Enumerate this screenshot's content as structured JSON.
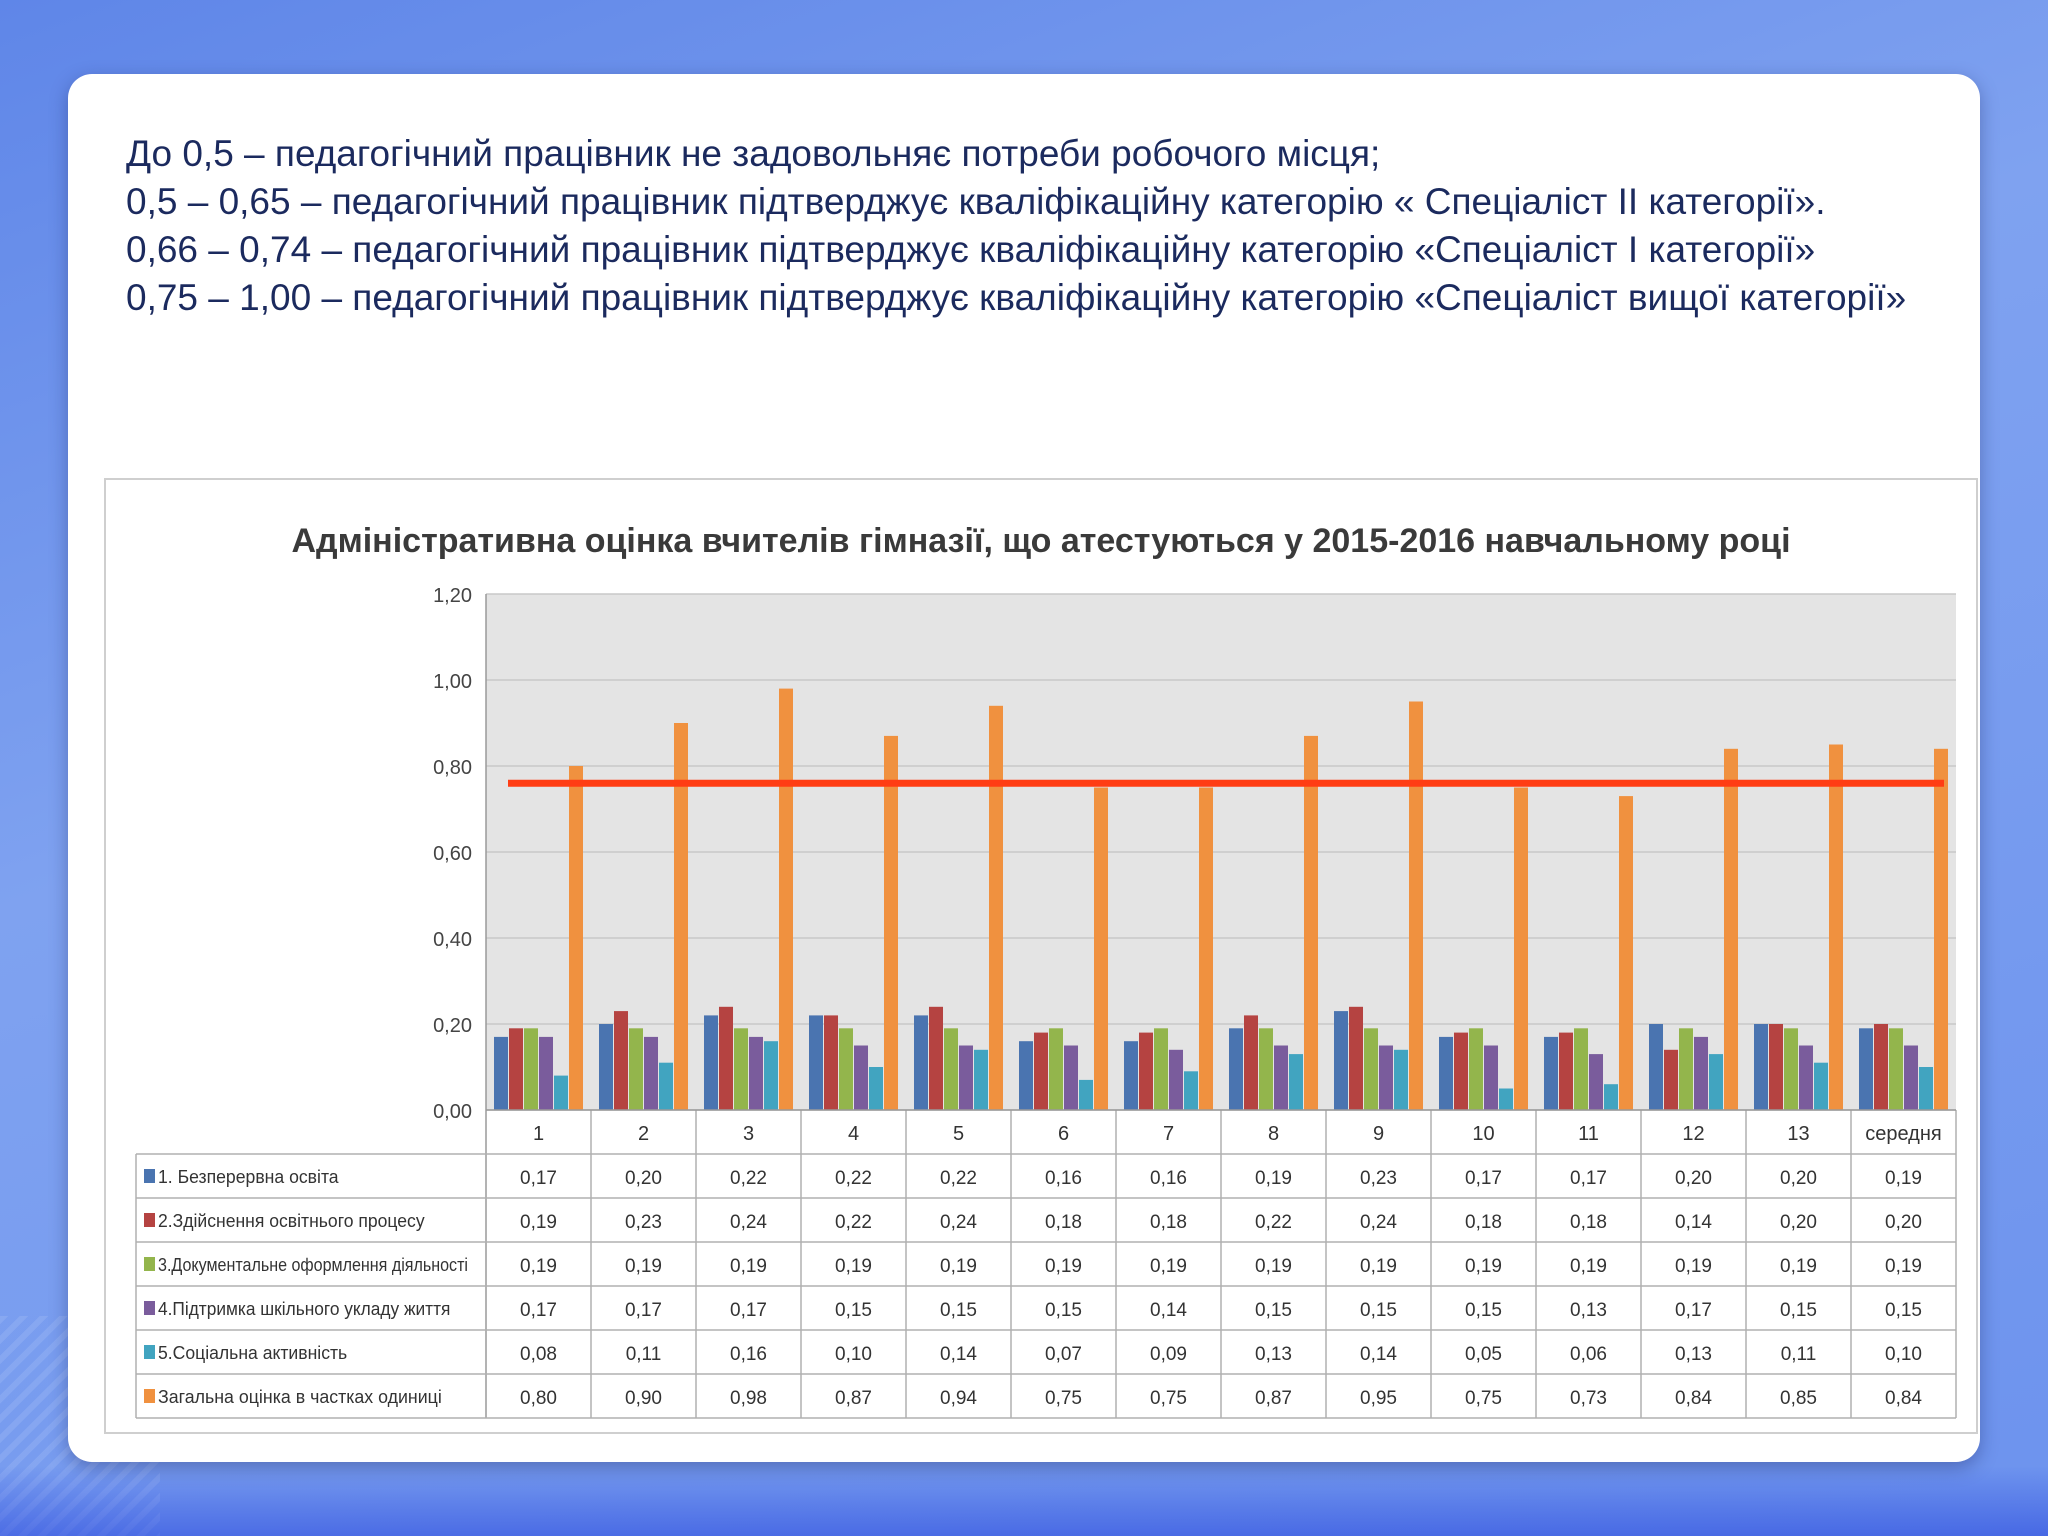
{
  "criteria": [
    "До 0,5 – педагогічний працівник не задовольняє потреби робочого місця;",
    "0,5 – 0,65 – педагогічний працівник підтверджує кваліфікаційну категорію « Спеціаліст ІІ категорії».",
    "0,66 – 0,74 – педагогічний працівник підтверджує кваліфікаційну категорію «Спеціаліст І категорії»",
    "0,75 – 1,00 – педагогічний працівник підтверджує кваліфікаційну категорію «Спеціаліст вищої категорії»"
  ],
  "colors": {
    "series": [
      "#4a74b0",
      "#b54341",
      "#93b54c",
      "#7a5c9c",
      "#41a4c0",
      "#f0913f"
    ],
    "threshold_line": "#ff3d14",
    "plot_bg": "#e4e4e4",
    "grid": "#c8c8c8"
  },
  "chart_data": {
    "type": "bar",
    "title": "Адміністративна оцінка вчителів гімназії, що атестуються у 2015-2016 навчальному році",
    "categories": [
      "1",
      "2",
      "3",
      "4",
      "5",
      "6",
      "7",
      "8",
      "9",
      "10",
      "11",
      "12",
      "13",
      "середня"
    ],
    "y_ticks": [
      "0,00",
      "0,20",
      "0,40",
      "0,60",
      "0,80",
      "1,00",
      "1,20"
    ],
    "ylim": [
      0,
      1.2
    ],
    "grid": true,
    "legend": "data-table-below",
    "threshold": 0.76,
    "series": [
      {
        "name": "1. Безперервна освіта",
        "values": [
          0.17,
          0.2,
          0.22,
          0.22,
          0.22,
          0.16,
          0.16,
          0.19,
          0.23,
          0.17,
          0.17,
          0.2,
          0.2,
          0.19
        ],
        "labels": [
          "0,17",
          "0,20",
          "0,22",
          "0,22",
          "0,22",
          "0,16",
          "0,16",
          "0,19",
          "0,23",
          "0,17",
          "0,17",
          "0,20",
          "0,20",
          "0,19"
        ]
      },
      {
        "name": "2.Здійснення освітнього процесу",
        "values": [
          0.19,
          0.23,
          0.24,
          0.22,
          0.24,
          0.18,
          0.18,
          0.22,
          0.24,
          0.18,
          0.18,
          0.14,
          0.2,
          0.2
        ],
        "labels": [
          "0,19",
          "0,23",
          "0,24",
          "0,22",
          "0,24",
          "0,18",
          "0,18",
          "0,22",
          "0,24",
          "0,18",
          "0,18",
          "0,14",
          "0,20",
          "0,20"
        ]
      },
      {
        "name": "3.Документальне оформлення діяльності",
        "values": [
          0.19,
          0.19,
          0.19,
          0.19,
          0.19,
          0.19,
          0.19,
          0.19,
          0.19,
          0.19,
          0.19,
          0.19,
          0.19,
          0.19
        ],
        "labels": [
          "0,19",
          "0,19",
          "0,19",
          "0,19",
          "0,19",
          "0,19",
          "0,19",
          "0,19",
          "0,19",
          "0,19",
          "0,19",
          "0,19",
          "0,19",
          "0,19"
        ]
      },
      {
        "name": "4.Підтримка шкільного укладу життя",
        "values": [
          0.17,
          0.17,
          0.17,
          0.15,
          0.15,
          0.15,
          0.14,
          0.15,
          0.15,
          0.15,
          0.13,
          0.17,
          0.15,
          0.15
        ],
        "labels": [
          "0,17",
          "0,17",
          "0,17",
          "0,15",
          "0,15",
          "0,15",
          "0,14",
          "0,15",
          "0,15",
          "0,15",
          "0,13",
          "0,17",
          "0,15",
          "0,15"
        ]
      },
      {
        "name": "5.Соціальна активність",
        "values": [
          0.08,
          0.11,
          0.16,
          0.1,
          0.14,
          0.07,
          0.09,
          0.13,
          0.14,
          0.05,
          0.06,
          0.13,
          0.11,
          0.1
        ],
        "labels": [
          "0,08",
          "0,11",
          "0,16",
          "0,10",
          "0,14",
          "0,07",
          "0,09",
          "0,13",
          "0,14",
          "0,05",
          "0,06",
          "0,13",
          "0,11",
          "0,10"
        ]
      },
      {
        "name": "Загальна оцінка в частках одиниці",
        "values": [
          0.8,
          0.9,
          0.98,
          0.87,
          0.94,
          0.75,
          0.75,
          0.87,
          0.95,
          0.75,
          0.73,
          0.84,
          0.85,
          0.84
        ],
        "labels": [
          "0,80",
          "0,90",
          "0,98",
          "0,87",
          "0,94",
          "0,75",
          "0,75",
          "0,87",
          "0,95",
          "0,75",
          "0,73",
          "0,84",
          "0,85",
          "0,84"
        ]
      }
    ]
  }
}
